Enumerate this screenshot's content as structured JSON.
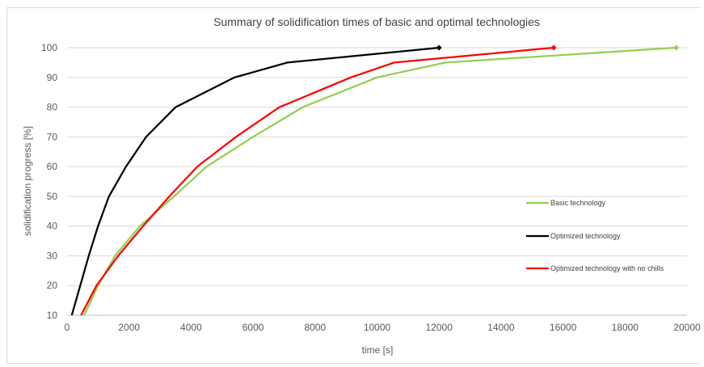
{
  "chart_data": {
    "type": "line",
    "title": "Summary of solidification times of basic and optimal technologies",
    "xlabel": "time [s]",
    "ylabel": "solidification progress [%]",
    "xlim": [
      0,
      20000
    ],
    "ylim": [
      10,
      100
    ],
    "xticks": [
      0,
      2000,
      4000,
      6000,
      8000,
      10000,
      12000,
      14000,
      16000,
      18000,
      20000
    ],
    "yticks": [
      10,
      20,
      30,
      40,
      50,
      60,
      70,
      80,
      90,
      100
    ],
    "grid": "horizontal",
    "legend_position": "right",
    "series": [
      {
        "name": "Basic technology",
        "color": "#92d050",
        "marker": "diamond-at-end",
        "x": [
          550,
          1000,
          1550,
          2350,
          3450,
          4500,
          6000,
          7600,
          10000,
          12200,
          19650
        ],
        "y": [
          10,
          20,
          30,
          40,
          50,
          60,
          70,
          80,
          90,
          95,
          100
        ]
      },
      {
        "name": "Optimized technology",
        "color": "#000000",
        "marker": "diamond-at-end",
        "x": [
          150,
          700,
          1000,
          1350,
          1900,
          2550,
          3500,
          5400,
          7100,
          12000
        ],
        "y": [
          10,
          30,
          40,
          50,
          60,
          70,
          80,
          90,
          95,
          100
        ]
      },
      {
        "name": "Optimized technology with no chills",
        "color": "#ff0000",
        "marker": "diamond-at-end",
        "x": [
          450,
          950,
          1650,
          2450,
          3300,
          4200,
          5450,
          6850,
          9150,
          10550,
          15700
        ],
        "y": [
          10,
          20,
          30,
          40,
          50,
          60,
          70,
          80,
          90,
          95,
          100
        ]
      }
    ]
  }
}
